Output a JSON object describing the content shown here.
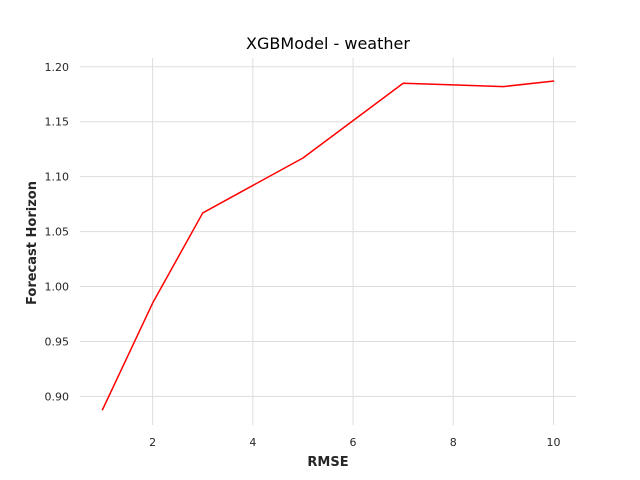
{
  "chart_data": {
    "type": "line",
    "title": "XGBModel - weather",
    "xlabel": "RMSE",
    "ylabel": "Forecast Horizon",
    "xlim": [
      0.55,
      10.45
    ],
    "ylim": [
      0.874,
      1.208
    ],
    "xticks": [
      2,
      4,
      6,
      8,
      10
    ],
    "yticks": [
      0.9,
      0.95,
      1.0,
      1.05,
      1.1,
      1.15,
      1.2
    ],
    "xtick_labels": [
      "2",
      "4",
      "6",
      "8",
      "10"
    ],
    "ytick_labels": [
      "0.90",
      "0.95",
      "1.00",
      "1.05",
      "1.10",
      "1.15",
      "1.20"
    ],
    "grid": true,
    "series": [
      {
        "color": "#ff0000",
        "x": [
          1,
          2,
          3,
          4,
          5,
          6,
          7,
          8,
          9,
          10
        ],
        "y": [
          0.888,
          0.985,
          1.067,
          1.092,
          1.117,
          1.151,
          1.185,
          1.1835,
          1.182,
          1.187
        ]
      }
    ]
  }
}
